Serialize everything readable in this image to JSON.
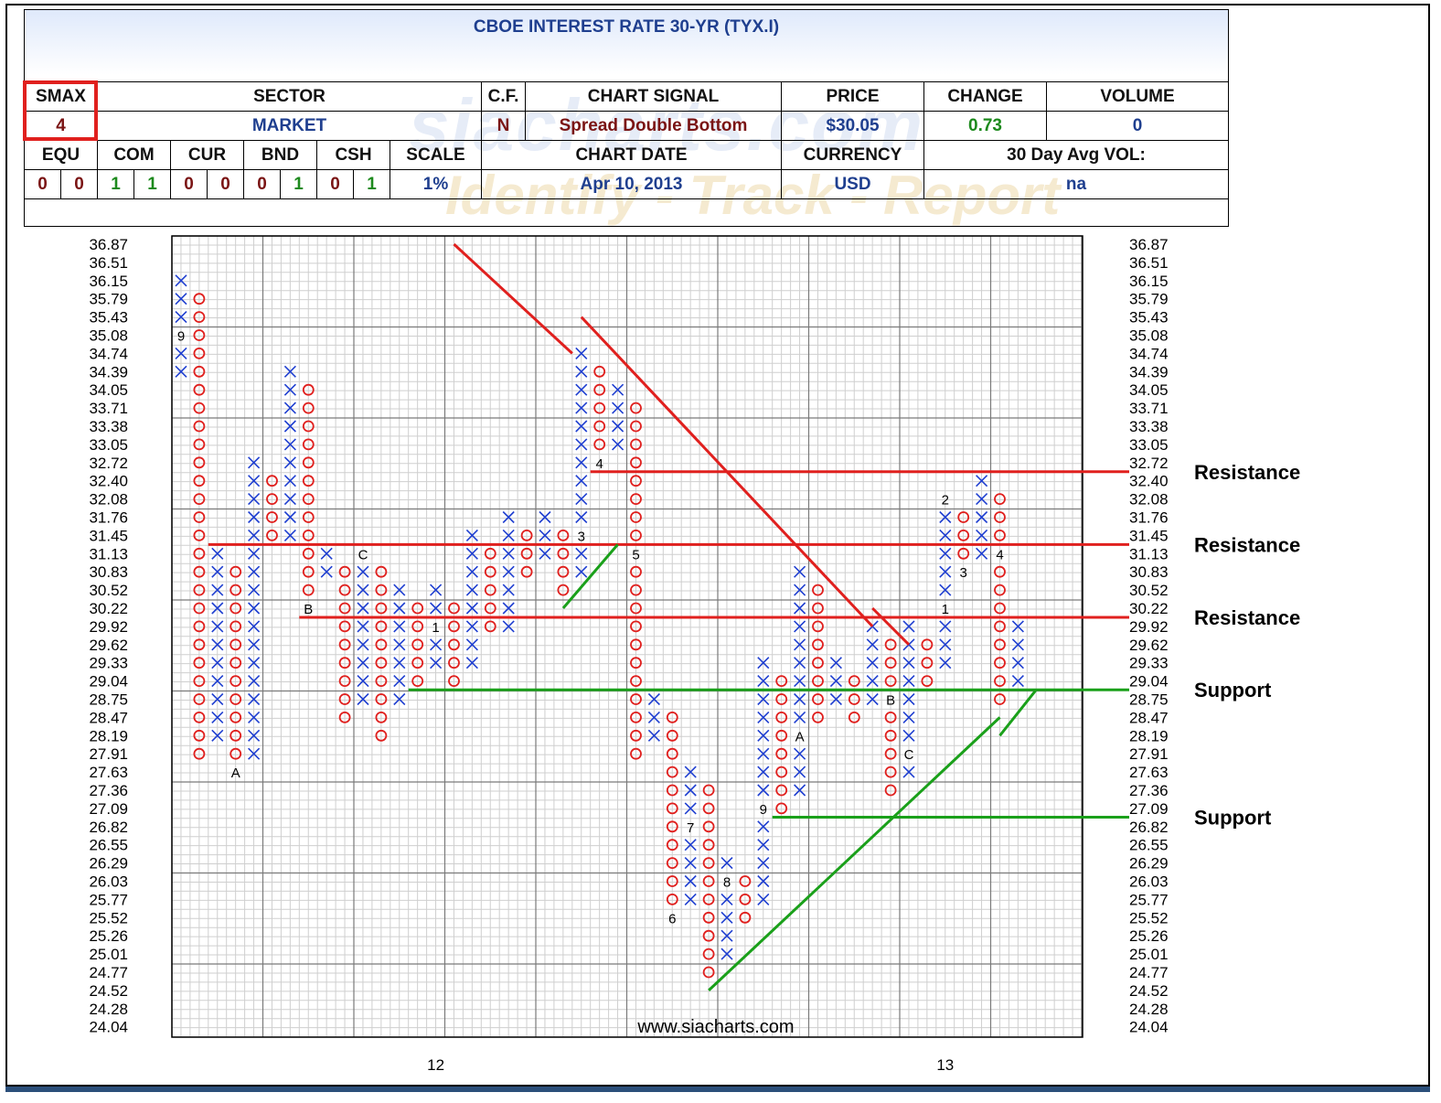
{
  "title": "CBOE INTEREST RATE 30-YR (TYX.I)",
  "header": {
    "smax_label": "SMAX",
    "smax_value": "4",
    "sector_label": "SECTOR",
    "sector_value": "MARKET",
    "cf_label": "C.F.",
    "cf_value": "N",
    "signal_label": "CHART SIGNAL",
    "signal_value": "Spread Double Bottom",
    "price_label": "PRICE",
    "price_value": "$30.05",
    "change_label": "CHANGE",
    "change_value": "0.73",
    "volume_label": "VOLUME",
    "volume_value": "0",
    "equ_label": "EQU",
    "com_label": "COM",
    "cur_label": "CUR",
    "bnd_label": "BND",
    "csh_label": "CSH",
    "scale_label": "SCALE",
    "scale_value": "1%",
    "equ": [
      "0",
      "0"
    ],
    "com": [
      "1",
      "1"
    ],
    "cur": [
      "0",
      "0"
    ],
    "bnd": [
      "0",
      "1"
    ],
    "csh": [
      "0",
      "1"
    ],
    "chart_date_label": "CHART DATE",
    "chart_date_value": "Apr 10, 2013",
    "currency_label": "CURRENCY",
    "currency_value": "USD",
    "avgvol_label": "30 Day Avg VOL:",
    "avgvol_value": "na"
  },
  "watermark": "siacharts.com",
  "watermark_tag": "Identify - Track - Report",
  "footer_url": "www.siacharts.com",
  "colors": {
    "x": "#1f3fd0",
    "o": "#e0201e",
    "resistance": "#e0201e",
    "support": "#1aa01a",
    "grid": "#9a9a9a"
  },
  "chart_data": {
    "type": "point-and-figure",
    "y_ticks": [
      "36.87",
      "36.51",
      "36.15",
      "35.79",
      "35.43",
      "35.08",
      "34.74",
      "34.39",
      "34.05",
      "33.71",
      "33.38",
      "33.05",
      "32.72",
      "32.40",
      "32.08",
      "31.76",
      "31.45",
      "31.13",
      "30.83",
      "30.52",
      "30.22",
      "29.92",
      "29.62",
      "29.33",
      "29.04",
      "28.75",
      "28.47",
      "28.19",
      "27.91",
      "27.63",
      "27.36",
      "27.09",
      "26.82",
      "26.55",
      "26.29",
      "26.03",
      "25.77",
      "25.52",
      "25.26",
      "25.01",
      "24.77",
      "24.52",
      "24.28",
      "24.04"
    ],
    "x_labels": [
      {
        "col": 14,
        "text": "12"
      },
      {
        "col": 42,
        "text": "13"
      }
    ],
    "columns": [
      {
        "col": 0,
        "type": "X",
        "from": 34.39,
        "to": 36.15,
        "marks": [
          {
            "price": 35.08,
            "label": "9"
          }
        ]
      },
      {
        "col": 1,
        "type": "O",
        "from": 35.79,
        "to": 27.91
      },
      {
        "col": 2,
        "type": "X",
        "from": 28.19,
        "to": 31.13
      },
      {
        "col": 3,
        "type": "O",
        "from": 30.83,
        "to": 27.91,
        "marks": [
          {
            "price": 27.63,
            "label": "A",
            "below": true
          }
        ]
      },
      {
        "col": 4,
        "type": "X",
        "from": 27.91,
        "to": 32.72
      },
      {
        "col": 5,
        "type": "O",
        "from": 32.4,
        "to": 31.45
      },
      {
        "col": 6,
        "type": "X",
        "from": 31.45,
        "to": 34.39
      },
      {
        "col": 7,
        "type": "O",
        "from": 34.05,
        "to": 30.52,
        "marks": [
          {
            "price": 30.22,
            "label": "B",
            "below": true
          }
        ]
      },
      {
        "col": 8,
        "type": "X",
        "from": 30.83,
        "to": 31.13
      },
      {
        "col": 9,
        "type": "O",
        "from": 30.83,
        "to": 28.47
      },
      {
        "col": 10,
        "type": "X",
        "from": 28.75,
        "to": 31.13,
        "marks": [
          {
            "price": 31.13,
            "label": "C"
          }
        ]
      },
      {
        "col": 11,
        "type": "O",
        "from": 30.83,
        "to": 28.19
      },
      {
        "col": 12,
        "type": "X",
        "from": 28.75,
        "to": 30.52
      },
      {
        "col": 13,
        "type": "O",
        "from": 30.22,
        "to": 29.04
      },
      {
        "col": 14,
        "type": "X",
        "from": 29.33,
        "to": 30.52,
        "marks": [
          {
            "price": 29.92,
            "label": "1"
          }
        ]
      },
      {
        "col": 15,
        "type": "O",
        "from": 30.22,
        "to": 29.04
      },
      {
        "col": 16,
        "type": "X",
        "from": 29.33,
        "to": 31.45
      },
      {
        "col": 17,
        "type": "O",
        "from": 31.13,
        "to": 29.92,
        "marks": [
          {
            "price": 29.62,
            "label": "2"
          }
        ]
      },
      {
        "col": 18,
        "type": "X",
        "from": 29.92,
        "to": 31.76
      },
      {
        "col": 19,
        "type": "O",
        "from": 31.45,
        "to": 30.83
      },
      {
        "col": 20,
        "type": "X",
        "from": 31.13,
        "to": 31.76
      },
      {
        "col": 21,
        "type": "O",
        "from": 31.45,
        "to": 30.52
      },
      {
        "col": 22,
        "type": "X",
        "from": 30.83,
        "to": 34.74,
        "marks": [
          {
            "price": 31.45,
            "label": "3"
          }
        ]
      },
      {
        "col": 23,
        "type": "O",
        "from": 34.39,
        "to": 32.72,
        "marks": [
          {
            "price": 32.72,
            "label": "4"
          }
        ]
      },
      {
        "col": 24,
        "type": "X",
        "from": 33.05,
        "to": 34.05
      },
      {
        "col": 25,
        "type": "O",
        "from": 33.71,
        "to": 27.91,
        "marks": [
          {
            "price": 31.13,
            "label": "5"
          }
        ]
      },
      {
        "col": 26,
        "type": "X",
        "from": 28.19,
        "to": 28.75
      },
      {
        "col": 27,
        "type": "O",
        "from": 28.47,
        "to": 25.77,
        "marks": [
          {
            "price": 25.52,
            "label": "6",
            "below": true
          }
        ]
      },
      {
        "col": 28,
        "type": "X",
        "from": 25.77,
        "to": 27.63,
        "marks": [
          {
            "price": 26.82,
            "label": "7"
          }
        ]
      },
      {
        "col": 29,
        "type": "O",
        "from": 27.36,
        "to": 24.77
      },
      {
        "col": 30,
        "type": "X",
        "from": 25.01,
        "to": 26.29,
        "marks": [
          {
            "price": 26.03,
            "label": "8"
          }
        ]
      },
      {
        "col": 31,
        "type": "O",
        "from": 26.03,
        "to": 25.52
      },
      {
        "col": 32,
        "type": "X",
        "from": 25.77,
        "to": 29.33,
        "marks": [
          {
            "price": 27.09,
            "label": "9"
          }
        ]
      },
      {
        "col": 33,
        "type": "O",
        "from": 29.04,
        "to": 27.09
      },
      {
        "col": 34,
        "type": "X",
        "from": 27.36,
        "to": 30.83,
        "marks": [
          {
            "price": 28.19,
            "label": "A"
          }
        ]
      },
      {
        "col": 35,
        "type": "O",
        "from": 30.52,
        "to": 28.47
      },
      {
        "col": 36,
        "type": "X",
        "from": 28.75,
        "to": 29.33
      },
      {
        "col": 37,
        "type": "O",
        "from": 29.04,
        "to": 28.47
      },
      {
        "col": 38,
        "type": "X",
        "from": 28.75,
        "to": 29.92
      },
      {
        "col": 39,
        "type": "O",
        "from": 29.62,
        "to": 27.36,
        "marks": [
          {
            "price": 28.75,
            "label": "B"
          }
        ]
      },
      {
        "col": 40,
        "type": "X",
        "from": 27.63,
        "to": 29.92,
        "marks": [
          {
            "price": 27.91,
            "label": "C"
          }
        ]
      },
      {
        "col": 41,
        "type": "O",
        "from": 29.62,
        "to": 29.04
      },
      {
        "col": 42,
        "type": "X",
        "from": 29.33,
        "to": 32.08,
        "marks": [
          {
            "price": 30.22,
            "label": "1"
          },
          {
            "price": 32.08,
            "label": "2"
          }
        ]
      },
      {
        "col": 43,
        "type": "O",
        "from": 31.76,
        "to": 30.83,
        "marks": [
          {
            "price": 30.83,
            "label": "3"
          }
        ]
      },
      {
        "col": 44,
        "type": "X",
        "from": 31.13,
        "to": 32.4
      },
      {
        "col": 45,
        "type": "O",
        "from": 32.08,
        "to": 28.75,
        "marks": [
          {
            "price": 31.13,
            "label": "4"
          }
        ]
      },
      {
        "col": 46,
        "type": "X",
        "from": 29.04,
        "to": 29.92
      }
    ],
    "lines": [
      {
        "kind": "resistance",
        "label": "Resistance",
        "price": 32.56,
        "from_col": 23
      },
      {
        "kind": "resistance",
        "label": "Resistance",
        "price": 31.29,
        "from_col": 2
      },
      {
        "kind": "resistance",
        "label": "Resistance",
        "price": 30.07,
        "from_col": 7
      },
      {
        "kind": "support",
        "label": "Support",
        "price": 28.9,
        "from_col": 13
      },
      {
        "kind": "support",
        "label": "Support",
        "price": 26.96,
        "from_col": 33
      }
    ],
    "trendlines": [
      {
        "kind": "resistance",
        "from": [
          15,
          36.87
        ],
        "to": [
          21.5,
          34.74
        ]
      },
      {
        "kind": "resistance",
        "from": [
          22,
          35.43
        ],
        "to": [
          38,
          29.92
        ]
      },
      {
        "kind": "resistance",
        "from": [
          38,
          30.22
        ],
        "to": [
          40,
          29.62
        ]
      },
      {
        "kind": "support",
        "from": [
          21,
          30.22
        ],
        "to": [
          24,
          31.29
        ]
      },
      {
        "kind": "support",
        "from": [
          29,
          24.52
        ],
        "to": [
          45,
          28.47
        ]
      },
      {
        "kind": "support",
        "from": [
          45,
          28.19
        ],
        "to": [
          47,
          28.9
        ]
      }
    ]
  }
}
